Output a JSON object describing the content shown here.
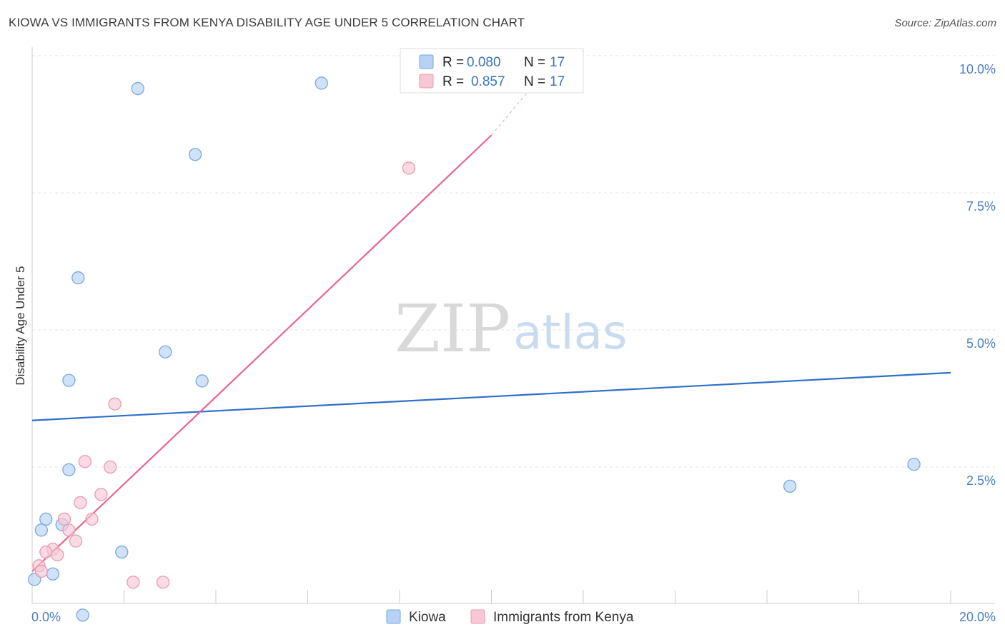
{
  "header": {
    "title": "KIOWA VS IMMIGRANTS FROM KENYA DISABILITY AGE UNDER 5 CORRELATION CHART",
    "source": "Source: ZipAtlas.com"
  },
  "watermark": {
    "zip": "ZIP",
    "atlas": "atlas"
  },
  "legend": {
    "rows": [
      {
        "r_label": "R = ",
        "r_value": "0.080",
        "n_label": "N = ",
        "n_value": "17",
        "color": "#b7d2f4",
        "stroke": "#7aa6dc"
      },
      {
        "r_label": "R = ",
        "r_value": "0.857",
        "n_label": "N = ",
        "n_value": "17",
        "color": "#f8c7d5",
        "stroke": "#e99ab2"
      }
    ]
  },
  "bottom_legend": [
    {
      "label": "Kiowa",
      "color": "#b7d2f4",
      "stroke": "#7aa6dc"
    },
    {
      "label": "Immigrants from Kenya",
      "color": "#f8c7d5",
      "stroke": "#e99ab2"
    }
  ],
  "chart_data": {
    "type": "scatter",
    "title": "KIOWA VS IMMIGRANTS FROM KENYA DISABILITY AGE UNDER 5 CORRELATION CHART",
    "xlabel": "",
    "ylabel": "Disability Age Under 5",
    "xlim": [
      0,
      20
    ],
    "ylim": [
      0,
      10
    ],
    "x_tick_labels": [
      "0.0%",
      "20.0%"
    ],
    "y_ticks": [
      2.5,
      5.0,
      7.5,
      10.0
    ],
    "y_tick_labels": [
      "2.5%",
      "5.0%",
      "7.5%",
      "10.0%"
    ],
    "grid": true,
    "legend_position": "top-center",
    "series": [
      {
        "name": "Kiowa",
        "color": "#b7d2f4",
        "stroke": "#7aa6dc",
        "line_color": "#2e6fca",
        "points": [
          [
            2.3,
            9.4
          ],
          [
            6.3,
            9.5
          ],
          [
            3.55,
            8.2
          ],
          [
            1.0,
            5.95
          ],
          [
            2.9,
            4.6
          ],
          [
            0.8,
            4.08
          ],
          [
            3.7,
            4.07
          ],
          [
            0.8,
            2.45
          ],
          [
            19.2,
            2.55
          ],
          [
            16.5,
            2.15
          ],
          [
            0.3,
            1.55
          ],
          [
            0.65,
            1.45
          ],
          [
            0.2,
            1.35
          ],
          [
            1.95,
            0.95
          ],
          [
            0.45,
            0.55
          ],
          [
            0.05,
            0.45
          ],
          [
            1.1,
            -0.2
          ]
        ],
        "trend": {
          "x": [
            0,
            20
          ],
          "y": [
            3.35,
            4.22
          ]
        }
      },
      {
        "name": "Immigrants from Kenya",
        "color": "#f8c7d5",
        "stroke": "#e99ab2",
        "line_color": "#e8668f",
        "points": [
          [
            8.2,
            7.95
          ],
          [
            1.8,
            3.65
          ],
          [
            1.15,
            2.6
          ],
          [
            1.7,
            2.5
          ],
          [
            1.5,
            2.0
          ],
          [
            1.05,
            1.85
          ],
          [
            0.7,
            1.55
          ],
          [
            1.3,
            1.55
          ],
          [
            0.8,
            1.35
          ],
          [
            0.95,
            1.15
          ],
          [
            0.45,
            1.0
          ],
          [
            0.3,
            0.95
          ],
          [
            0.55,
            0.9
          ],
          [
            0.15,
            0.7
          ],
          [
            0.2,
            0.6
          ],
          [
            2.2,
            0.4
          ],
          [
            2.85,
            0.4
          ]
        ],
        "trend": {
          "x": [
            0,
            10
          ],
          "y": [
            0.6,
            8.55
          ]
        },
        "trend_dashed": {
          "x": [
            10,
            10.8
          ],
          "y": [
            8.55,
            9.35
          ]
        }
      }
    ]
  }
}
